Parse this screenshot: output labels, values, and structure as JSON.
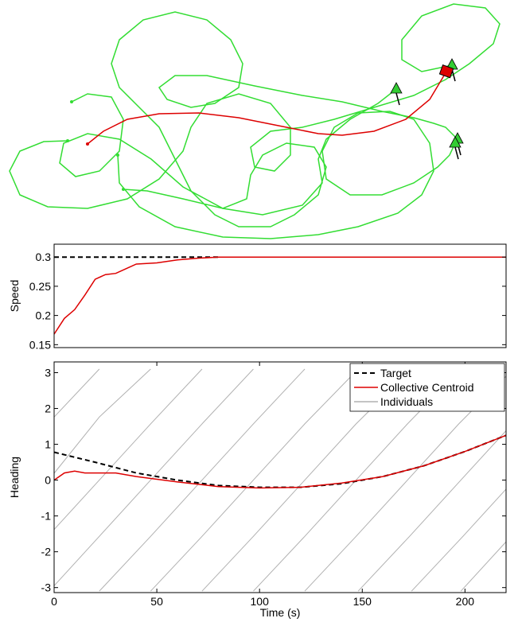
{
  "chart_data": [
    {
      "type": "trajectory",
      "xlim": [
        0,
        651
      ],
      "ylim": [
        300,
        0
      ],
      "series": [
        {
          "name": null,
          "color": "#33dd33",
          "x": [
            90,
            110,
            140,
            155,
            150,
            125,
            95,
            75,
            80,
            110,
            150,
            190,
            230,
            280,
            330,
            380,
            405,
            400,
            410,
            440,
            475,
            498
          ],
          "values": [
            128,
            118,
            122,
            150,
            190,
            215,
            222,
            205,
            180,
            168,
            175,
            200,
            235,
            262,
            270,
            258,
            230,
            200,
            175,
            150,
            130,
            112
          ]
        },
        {
          "name": null,
          "color": "#33dd33",
          "x": [
            85,
            55,
            25,
            12,
            25,
            60,
            110,
            160,
            200,
            230,
            240,
            260,
            300,
            340,
            365,
            365,
            345,
            320,
            315,
            340,
            380,
            420,
            470,
            520,
            560,
            590,
            620,
            628,
            610,
            570,
            530,
            505,
            505,
            530,
            568
          ],
          "values": [
            177,
            178,
            190,
            215,
            245,
            260,
            262,
            250,
            225,
            190,
            160,
            130,
            118,
            130,
            160,
            195,
            215,
            210,
            185,
            165,
            160,
            150,
            135,
            120,
            100,
            80,
            55,
            30,
            10,
            5,
            20,
            50,
            75,
            90,
            82
          ]
        },
        {
          "name": null,
          "color": "#33dd33",
          "x": [
            155,
            185,
            230,
            280,
            310,
            315,
            330,
            360,
            395,
            410,
            400,
            370,
            340,
            300,
            270,
            240,
            220,
            200,
            170,
            150,
            140,
            150,
            180,
            220,
            260,
            290,
            305,
            300,
            270,
            240,
            210,
            200,
            220,
            260,
            320,
            380,
            430,
            480,
            520,
            545,
            560,
            575
          ],
          "values": [
            238,
            240,
            250,
            262,
            250,
            220,
            195,
            180,
            185,
            210,
            245,
            270,
            285,
            285,
            270,
            240,
            200,
            160,
            130,
            110,
            80,
            50,
            25,
            15,
            25,
            50,
            80,
            110,
            130,
            135,
            125,
            110,
            95,
            95,
            108,
            120,
            128,
            140,
            148,
            155,
            160,
            175
          ]
        },
        {
          "name": null,
          "color": "#33dd33",
          "x": [
            148,
            150,
            175,
            220,
            280,
            340,
            400,
            450,
            500,
            530,
            545,
            540,
            520,
            490,
            450,
            420,
            405,
            410,
            440,
            480,
            520,
            550,
            565,
            572
          ],
          "values": [
            195,
            230,
            260,
            285,
            298,
            300,
            295,
            285,
            268,
            245,
            215,
            180,
            150,
            140,
            142,
            160,
            190,
            225,
            245,
            245,
            230,
            210,
            195,
            180
          ]
        },
        {
          "name": null,
          "color": "#dd0000",
          "x": [
            110,
            130,
            160,
            200,
            250,
            300,
            350,
            400,
            430,
            470,
            510,
            540,
            555,
            562
          ],
          "values": [
            181,
            165,
            150,
            143,
            142,
            148,
            158,
            168,
            170,
            165,
            150,
            125,
            100,
            88
          ]
        }
      ]
    },
    {
      "type": "line",
      "ylabel": "Speed",
      "xlim": [
        0,
        220
      ],
      "ylim": [
        0.145,
        0.322
      ],
      "yticks": [
        0.15,
        0.2,
        0.25,
        0.3
      ],
      "series": [
        {
          "name": "Target",
          "color": "#000000",
          "dash": true,
          "x": [
            0,
            80
          ],
          "values": [
            0.3,
            0.3
          ]
        },
        {
          "name": "Collective Centroid",
          "color": "#dd0000",
          "dash": false,
          "x": [
            0,
            5,
            10,
            15,
            20,
            25,
            30,
            35,
            40,
            50,
            60,
            70,
            80,
            100,
            150,
            220
          ],
          "values": [
            0.168,
            0.195,
            0.21,
            0.235,
            0.262,
            0.27,
            0.272,
            0.28,
            0.288,
            0.29,
            0.295,
            0.298,
            0.3,
            0.3,
            0.3,
            0.3
          ]
        }
      ]
    },
    {
      "type": "line",
      "ylabel": "Heading",
      "xlabel": "Time (s)",
      "xlim": [
        0,
        220
      ],
      "ylim": [
        -3.14,
        3.3
      ],
      "xticks": [
        0,
        50,
        100,
        150,
        200
      ],
      "yticks": [
        -3,
        -2,
        -1,
        0,
        1,
        2,
        3
      ],
      "legend": "upper right",
      "series": [
        {
          "name": "Individuals",
          "color": "#b0b0b0",
          "dash": false,
          "legend_order": 2,
          "x": [
            0,
            22,
            22,
            22,
            47,
            72,
            97,
            122,
            122,
            122,
            147,
            172,
            197,
            220
          ],
          "values": [
            1.76,
            3.1,
            null,
            -3.1,
            -1.57,
            0,
            1.57,
            3.1,
            null,
            -3.1,
            -1.57,
            0,
            1.57,
            2.9
          ]
        },
        {
          "name": null,
          "color": "#b0b0b0",
          "dash": false,
          "x": [
            0,
            22,
            47,
            47,
            47,
            72,
            97,
            122,
            148,
            148,
            148,
            173,
            198,
            220
          ],
          "values": [
            0.19,
            1.76,
            3.1,
            null,
            -3.1,
            -1.57,
            0,
            1.57,
            3.1,
            null,
            -3.1,
            -1.57,
            0,
            1.38
          ]
        },
        {
          "name": null,
          "color": "#b0b0b0",
          "dash": false,
          "x": [
            0,
            22,
            47,
            72,
            72,
            72,
            97,
            122,
            147,
            174,
            174,
            174,
            199,
            220
          ],
          "values": [
            -1.38,
            0,
            1.57,
            3.1,
            null,
            -3.1,
            -1.57,
            0,
            1.57,
            3.1,
            null,
            -3.1,
            -1.57,
            -0.25
          ]
        },
        {
          "name": null,
          "color": "#b0b0b0",
          "dash": false,
          "x": [
            0,
            22,
            47,
            72,
            97,
            97,
            97,
            122,
            147,
            172,
            198,
            198,
            198,
            220
          ],
          "values": [
            -2.95,
            -1.57,
            0,
            1.57,
            3.1,
            null,
            -3.1,
            -1.57,
            0,
            1.57,
            3.1,
            null,
            -3.1,
            -1.72
          ]
        },
        {
          "name": "Target",
          "color": "#000000",
          "dash": true,
          "legend_order": 0,
          "x": [
            0,
            20,
            40,
            60,
            80,
            100,
            120,
            140,
            160,
            180,
            200,
            220
          ],
          "values": [
            0.78,
            0.5,
            0.2,
            0,
            -0.15,
            -0.2,
            -0.2,
            -0.1,
            0.1,
            0.4,
            0.8,
            1.25
          ]
        },
        {
          "name": "Collective Centroid",
          "color": "#dd0000",
          "dash": false,
          "legend_order": 1,
          "x": [
            0,
            5,
            10,
            15,
            30,
            40,
            60,
            80,
            100,
            120,
            140,
            160,
            180,
            200,
            220
          ],
          "values": [
            0,
            0.2,
            0.25,
            0.2,
            0.2,
            0.1,
            -0.05,
            -0.18,
            -0.22,
            -0.2,
            -0.08,
            0.1,
            0.4,
            0.8,
            1.25
          ]
        }
      ]
    }
  ]
}
